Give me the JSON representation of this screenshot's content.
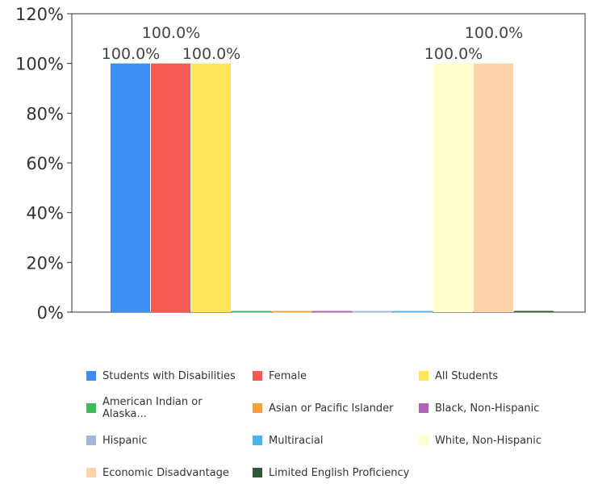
{
  "chart_data": {
    "type": "bar",
    "ylim": [
      0,
      120
    ],
    "y_ticks": [
      {
        "value": 0,
        "label": "0%"
      },
      {
        "value": 20,
        "label": "20%"
      },
      {
        "value": 40,
        "label": "40%"
      },
      {
        "value": 60,
        "label": "60%"
      },
      {
        "value": 80,
        "label": "80%"
      },
      {
        "value": 100,
        "label": "100%"
      },
      {
        "value": 120,
        "label": "120%"
      }
    ],
    "grid": false,
    "legend_position": "bottom",
    "series": [
      {
        "name": "Students with Disabilities",
        "value": 100,
        "label": "100.0%",
        "color": "#3a8ef6"
      },
      {
        "name": "Female",
        "value": 100,
        "label": "100.0%",
        "color": "#f45b52"
      },
      {
        "name": "All Students",
        "value": 100,
        "label": "100.0%",
        "color": "#ffe55c"
      },
      {
        "name": "American Indian or Alaska...",
        "value": 0,
        "label": "",
        "color": "#3dbb5a"
      },
      {
        "name": "Asian or Pacific Islander",
        "value": 0,
        "label": "",
        "color": "#f5a03b"
      },
      {
        "name": "Black, Non-Hispanic",
        "value": 0,
        "label": "",
        "color": "#b062b8"
      },
      {
        "name": "Hispanic",
        "value": 0,
        "label": "",
        "color": "#a3b8d8"
      },
      {
        "name": "Multiracial",
        "value": 0,
        "label": "",
        "color": "#4cb4ec"
      },
      {
        "name": "White, Non-Hispanic",
        "value": 100,
        "label": "100.0%",
        "color": "#ffffd0"
      },
      {
        "name": "Economic Disadvantage",
        "value": 100,
        "label": "100.0%",
        "color": "#ffd3aa"
      },
      {
        "name": "Limited English Proficiency",
        "value": 0,
        "label": "",
        "color": "#2d5a32"
      }
    ]
  }
}
